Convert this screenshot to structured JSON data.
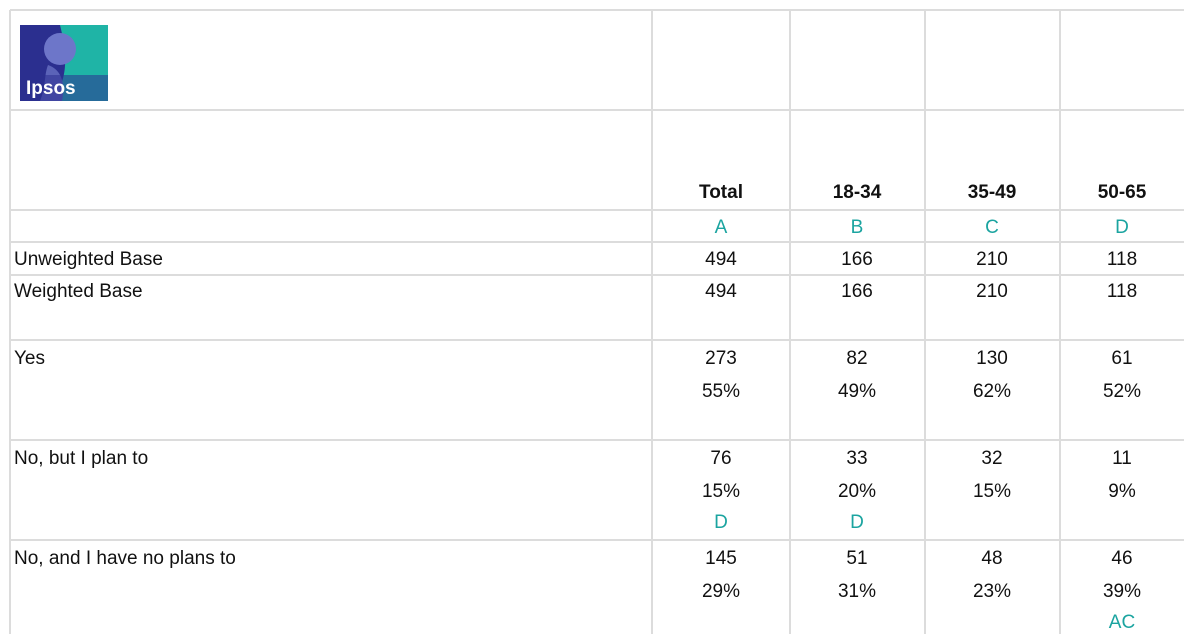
{
  "logo": {
    "text": "Ipsos"
  },
  "table": {
    "columns": [
      "Total",
      "18-34",
      "35-49",
      "50-65"
    ],
    "letters": [
      "A",
      "B",
      "C",
      "D"
    ],
    "bases": [
      {
        "label": "Unweighted Base",
        "values": [
          494,
          166,
          210,
          118
        ]
      },
      {
        "label": "Weighted Base",
        "values": [
          494,
          166,
          210,
          118
        ]
      }
    ],
    "rows": [
      {
        "label": "Yes",
        "values": [
          273,
          82,
          130,
          61
        ],
        "percents": [
          "55%",
          "49%",
          "62%",
          "52%"
        ],
        "sig": [
          null,
          null,
          null,
          null
        ]
      },
      {
        "label": "No, but I plan to",
        "values": [
          76,
          33,
          32,
          11
        ],
        "percents": [
          "15%",
          "20%",
          "15%",
          "9%"
        ],
        "sig": [
          "D",
          "D",
          null,
          null
        ]
      },
      {
        "label": "No, and I have no plans to",
        "values": [
          145,
          51,
          48,
          46
        ],
        "percents": [
          "29%",
          "31%",
          "23%",
          "39%"
        ],
        "sig": [
          null,
          null,
          null,
          "AC"
        ]
      }
    ]
  }
}
